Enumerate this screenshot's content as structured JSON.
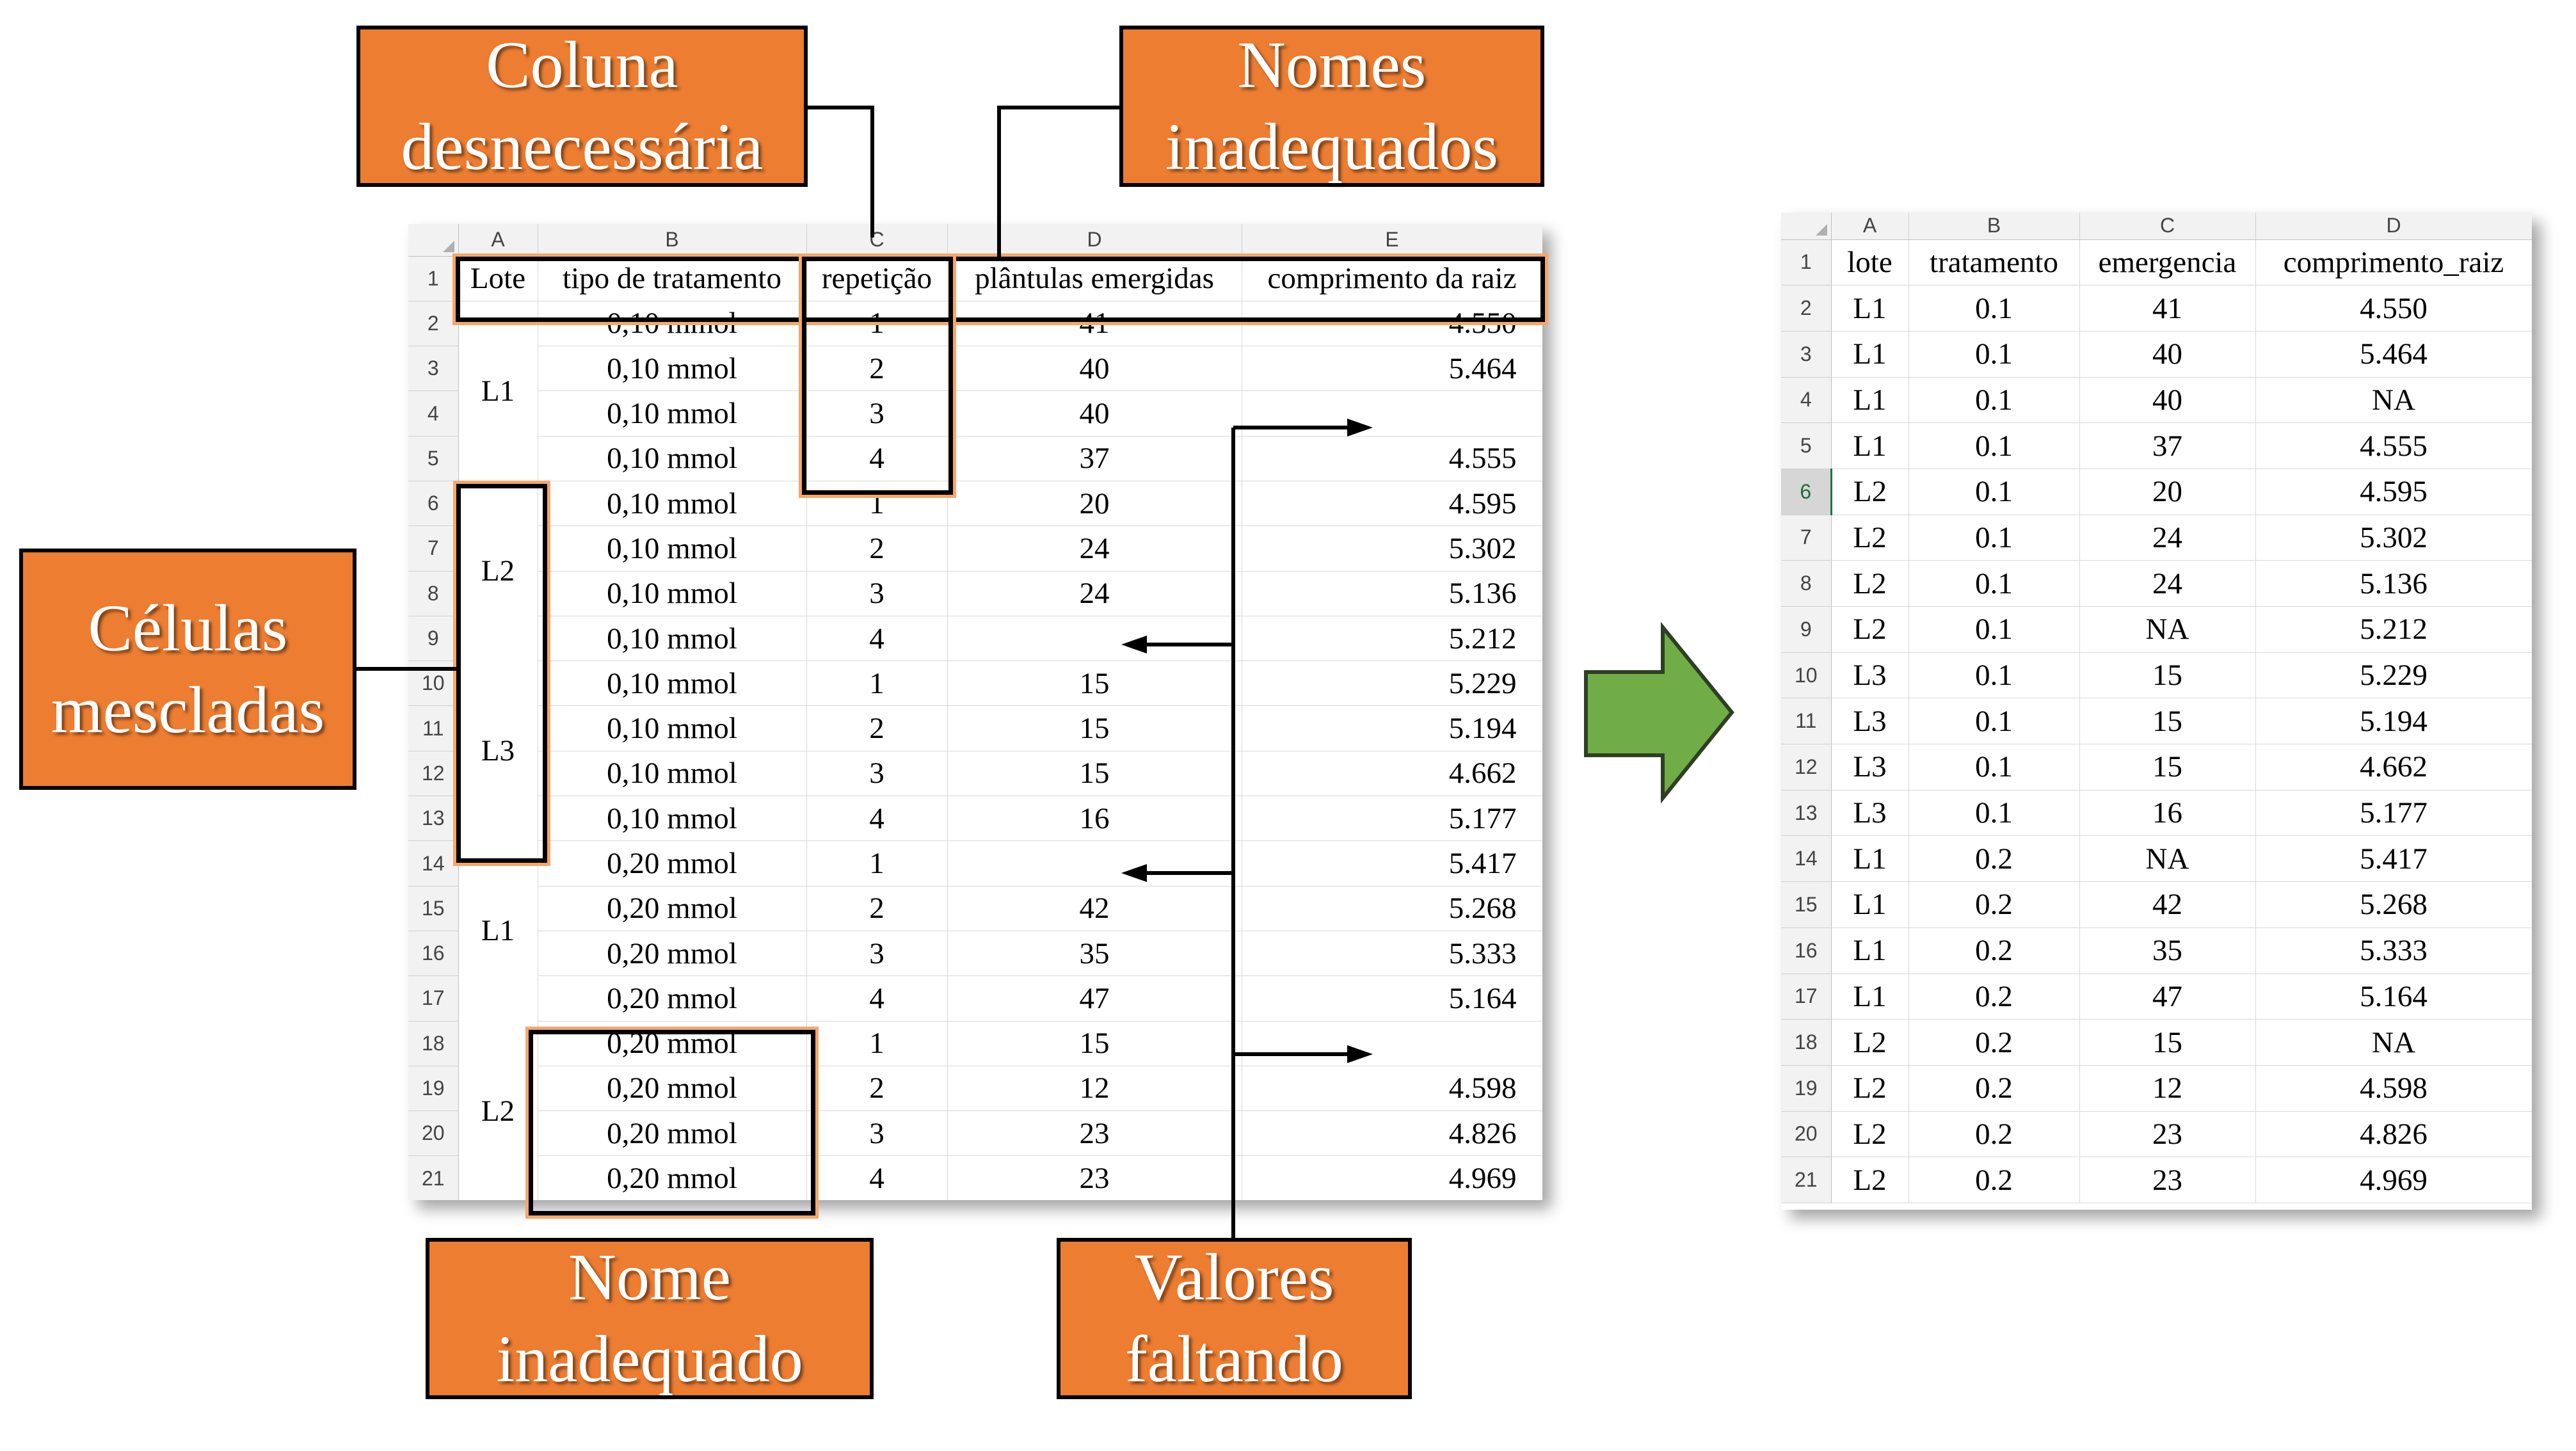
{
  "callouts": {
    "unneeded_column": [
      "Coluna",
      "desnecessária"
    ],
    "bad_names": [
      "Nomes",
      "inadequados"
    ],
    "merged_cells": [
      "Células",
      "mescladas"
    ],
    "bad_name": [
      "Nome",
      "inadequado"
    ],
    "missing_values": [
      "Valores",
      "faltando"
    ]
  },
  "left_sheet": {
    "col_letters": [
      "A",
      "B",
      "C",
      "D",
      "E"
    ],
    "row_numbers": [
      "1",
      "2",
      "3",
      "4",
      "5",
      "6",
      "7",
      "8",
      "9",
      "10",
      "11",
      "12",
      "13",
      "14",
      "15",
      "16",
      "17",
      "18",
      "19",
      "20",
      "21"
    ],
    "headers": [
      "Lote",
      "tipo de tratamento",
      "repetição",
      "plântulas emergidas",
      "comprimento da raiz"
    ],
    "merged_lote": [
      "L1",
      "L2",
      "L3",
      "L1",
      "L2"
    ],
    "rows": [
      [
        "0,10 mmol",
        "1",
        "41",
        "4.550"
      ],
      [
        "0,10 mmol",
        "2",
        "40",
        "5.464"
      ],
      [
        "0,10 mmol",
        "3",
        "40",
        ""
      ],
      [
        "0,10 mmol",
        "4",
        "37",
        "4.555"
      ],
      [
        "0,10 mmol",
        "1",
        "20",
        "4.595"
      ],
      [
        "0,10 mmol",
        "2",
        "24",
        "5.302"
      ],
      [
        "0,10 mmol",
        "3",
        "24",
        "5.136"
      ],
      [
        "0,10 mmol",
        "4",
        "",
        "5.212"
      ],
      [
        "0,10 mmol",
        "1",
        "15",
        "5.229"
      ],
      [
        "0,10 mmol",
        "2",
        "15",
        "5.194"
      ],
      [
        "0,10 mmol",
        "3",
        "15",
        "4.662"
      ],
      [
        "0,10 mmol",
        "4",
        "16",
        "5.177"
      ],
      [
        "0,20 mmol",
        "1",
        "",
        "5.417"
      ],
      [
        "0,20 mmol",
        "2",
        "42",
        "5.268"
      ],
      [
        "0,20 mmol",
        "3",
        "35",
        "5.333"
      ],
      [
        "0,20 mmol",
        "4",
        "47",
        "5.164"
      ],
      [
        "0,20 mmol",
        "1",
        "15",
        ""
      ],
      [
        "0,20 mmol",
        "2",
        "12",
        "4.598"
      ],
      [
        "0,20 mmol",
        "3",
        "23",
        "4.826"
      ],
      [
        "0,20 mmol",
        "4",
        "23",
        "4.969"
      ]
    ]
  },
  "right_sheet": {
    "col_letters": [
      "A",
      "B",
      "C",
      "D"
    ],
    "row_numbers": [
      "1",
      "2",
      "3",
      "4",
      "5",
      "6",
      "7",
      "8",
      "9",
      "10",
      "11",
      "12",
      "13",
      "14",
      "15",
      "16",
      "17",
      "18",
      "19",
      "20",
      "21"
    ],
    "headers": [
      "lote",
      "tratamento",
      "emergencia",
      "comprimento_raiz"
    ],
    "selected_row": "6",
    "rows": [
      [
        "L1",
        "0.1",
        "41",
        "4.550"
      ],
      [
        "L1",
        "0.1",
        "40",
        "5.464"
      ],
      [
        "L1",
        "0.1",
        "40",
        "NA"
      ],
      [
        "L1",
        "0.1",
        "37",
        "4.555"
      ],
      [
        "L2",
        "0.1",
        "20",
        "4.595"
      ],
      [
        "L2",
        "0.1",
        "24",
        "5.302"
      ],
      [
        "L2",
        "0.1",
        "24",
        "5.136"
      ],
      [
        "L2",
        "0.1",
        "NA",
        "5.212"
      ],
      [
        "L3",
        "0.1",
        "15",
        "5.229"
      ],
      [
        "L3",
        "0.1",
        "15",
        "5.194"
      ],
      [
        "L3",
        "0.1",
        "15",
        "4.662"
      ],
      [
        "L3",
        "0.1",
        "16",
        "5.177"
      ],
      [
        "L1",
        "0.2",
        "NA",
        "5.417"
      ],
      [
        "L1",
        "0.2",
        "42",
        "5.268"
      ],
      [
        "L1",
        "0.2",
        "35",
        "5.333"
      ],
      [
        "L1",
        "0.2",
        "47",
        "5.164"
      ],
      [
        "L2",
        "0.2",
        "15",
        "NA"
      ],
      [
        "L2",
        "0.2",
        "12",
        "4.598"
      ],
      [
        "L2",
        "0.2",
        "23",
        "4.826"
      ],
      [
        "L2",
        "0.2",
        "23",
        "4.969"
      ]
    ]
  },
  "colors": {
    "callout_fill": "#ed7d31",
    "highlight_glow": "#f4a76a",
    "arrow_fill": "#70ad47",
    "arrow_stroke": "#2f3f24"
  },
  "icons": {
    "transform_arrow": "right-arrow-icon"
  }
}
